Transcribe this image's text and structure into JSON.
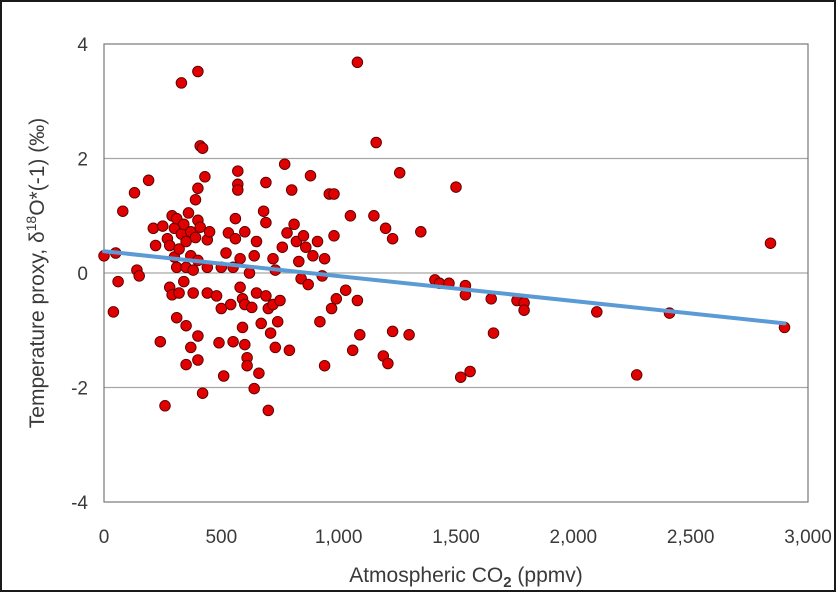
{
  "chart_data": {
    "type": "scatter",
    "title": "",
    "xlabel": {
      "prefix": "Atmospheric CO",
      "subscript": "2",
      "suffix": " (ppmv)"
    },
    "ylabel": {
      "prefix": "Temperature proxy, δ",
      "superscript": "18",
      "suffix": "O*(-1) (‰)"
    },
    "xlim": [
      0,
      3000
    ],
    "ylim": [
      -4,
      4
    ],
    "xticks": [
      0,
      500,
      1000,
      1500,
      2000,
      2500,
      3000
    ],
    "xtick_labels": [
      "0",
      "500",
      "1,000",
      "1,500",
      "2,000",
      "2,500",
      "3,000"
    ],
    "yticks": [
      -4,
      -2,
      0,
      2,
      4
    ],
    "ytick_labels": [
      "-4",
      "-2",
      "0",
      "2",
      "4"
    ],
    "grid": "horizontal",
    "legend": "none",
    "marker_color": "#e00000",
    "marker_edge": "#5a0000",
    "trend_color": "#5b9bd5",
    "series": [
      {
        "points": [
          [
            0,
            0.3
          ],
          [
            40,
            -0.68
          ],
          [
            50,
            0.35
          ],
          [
            60,
            -0.15
          ],
          [
            80,
            1.08
          ],
          [
            130,
            1.4
          ],
          [
            140,
            0.05
          ],
          [
            150,
            -0.05
          ],
          [
            190,
            1.62
          ],
          [
            210,
            0.78
          ],
          [
            220,
            0.48
          ],
          [
            240,
            -1.2
          ],
          [
            250,
            0.82
          ],
          [
            260,
            -2.32
          ],
          [
            270,
            0.6
          ],
          [
            280,
            0.48
          ],
          [
            280,
            -0.25
          ],
          [
            290,
            -0.38
          ],
          [
            290,
            1.0
          ],
          [
            300,
            0.28
          ],
          [
            300,
            0.78
          ],
          [
            310,
            0.1
          ],
          [
            310,
            0.95
          ],
          [
            310,
            -0.78
          ],
          [
            320,
            0.42
          ],
          [
            320,
            -0.35
          ],
          [
            330,
            3.32
          ],
          [
            330,
            0.68
          ],
          [
            340,
            -0.15
          ],
          [
            340,
            0.85
          ],
          [
            350,
            0.55
          ],
          [
            350,
            0.1
          ],
          [
            350,
            -0.92
          ],
          [
            360,
            1.05
          ],
          [
            370,
            0.72
          ],
          [
            370,
            0.3
          ],
          [
            380,
            0.05
          ],
          [
            380,
            -0.35
          ],
          [
            390,
            1.28
          ],
          [
            390,
            0.62
          ],
          [
            400,
            3.52
          ],
          [
            400,
            1.48
          ],
          [
            400,
            0.92
          ],
          [
            400,
            0.22
          ],
          [
            400,
            -1.1
          ],
          [
            400,
            -1.52
          ],
          [
            410,
            2.22
          ],
          [
            410,
            0.8
          ],
          [
            420,
            -2.1
          ],
          [
            420,
            2.18
          ],
          [
            430,
            1.68
          ],
          [
            440,
            0.58
          ],
          [
            440,
            0.1
          ],
          [
            440,
            -0.35
          ],
          [
            450,
            0.72
          ],
          [
            350,
            -1.6
          ],
          [
            370,
            -1.3
          ],
          [
            480,
            -0.4
          ],
          [
            490,
            -1.22
          ],
          [
            500,
            0.1
          ],
          [
            500,
            -0.62
          ],
          [
            510,
            -1.8
          ],
          [
            520,
            0.35
          ],
          [
            530,
            0.7
          ],
          [
            540,
            -0.55
          ],
          [
            550,
            -1.2
          ],
          [
            550,
            0.1
          ],
          [
            560,
            0.95
          ],
          [
            560,
            0.6
          ],
          [
            570,
            1.55
          ],
          [
            570,
            1.78
          ],
          [
            570,
            1.45
          ],
          [
            580,
            0.25
          ],
          [
            580,
            -0.25
          ],
          [
            590,
            -0.45
          ],
          [
            590,
            -0.95
          ],
          [
            600,
            0.72
          ],
          [
            600,
            -0.55
          ],
          [
            600,
            -1.25
          ],
          [
            610,
            -1.48
          ],
          [
            610,
            -1.62
          ],
          [
            620,
            0.0
          ],
          [
            630,
            -0.6
          ],
          [
            640,
            -2.02
          ],
          [
            640,
            0.3
          ],
          [
            650,
            0.55
          ],
          [
            650,
            -0.35
          ],
          [
            660,
            -1.75
          ],
          [
            670,
            -0.88
          ],
          [
            680,
            1.08
          ],
          [
            690,
            0.88
          ],
          [
            690,
            1.58
          ],
          [
            690,
            -0.4
          ],
          [
            700,
            -2.4
          ],
          [
            700,
            -0.62
          ],
          [
            710,
            -1.05
          ],
          [
            720,
            0.25
          ],
          [
            720,
            -0.55
          ],
          [
            730,
            0.05
          ],
          [
            730,
            -1.3
          ],
          [
            740,
            -0.85
          ],
          [
            750,
            -0.48
          ],
          [
            760,
            0.45
          ],
          [
            770,
            1.9
          ],
          [
            780,
            0.7
          ],
          [
            790,
            -1.35
          ],
          [
            800,
            1.45
          ],
          [
            810,
            0.85
          ],
          [
            820,
            0.55
          ],
          [
            830,
            0.2
          ],
          [
            840,
            -0.1
          ],
          [
            850,
            0.65
          ],
          [
            860,
            0.45
          ],
          [
            870,
            -0.2
          ],
          [
            880,
            1.7
          ],
          [
            890,
            0.3
          ],
          [
            910,
            0.55
          ],
          [
            920,
            -0.85
          ],
          [
            930,
            -0.05
          ],
          [
            940,
            -1.62
          ],
          [
            940,
            0.25
          ],
          [
            960,
            1.38
          ],
          [
            970,
            -0.62
          ],
          [
            980,
            1.38
          ],
          [
            980,
            0.65
          ],
          [
            990,
            -0.45
          ],
          [
            1030,
            -0.3
          ],
          [
            1050,
            1.0
          ],
          [
            1060,
            -1.35
          ],
          [
            1080,
            3.68
          ],
          [
            1080,
            -0.48
          ],
          [
            1090,
            -1.08
          ],
          [
            1150,
            1.0
          ],
          [
            1160,
            2.28
          ],
          [
            1190,
            -1.45
          ],
          [
            1200,
            0.78
          ],
          [
            1210,
            -1.58
          ],
          [
            1230,
            0.6
          ],
          [
            1230,
            -1.02
          ],
          [
            1260,
            1.75
          ],
          [
            1300,
            -1.08
          ],
          [
            1350,
            0.72
          ],
          [
            1410,
            -0.12
          ],
          [
            1430,
            -0.18
          ],
          [
            1470,
            -0.18
          ],
          [
            1500,
            1.5
          ],
          [
            1520,
            -1.82
          ],
          [
            1540,
            -0.22
          ],
          [
            1540,
            -0.38
          ],
          [
            1560,
            -1.72
          ],
          [
            1650,
            -0.45
          ],
          [
            1660,
            -1.05
          ],
          [
            1760,
            -0.48
          ],
          [
            1790,
            -0.52
          ],
          [
            1790,
            -0.65
          ],
          [
            2100,
            -0.68
          ],
          [
            2270,
            -1.78
          ],
          [
            2410,
            -0.7
          ],
          [
            2840,
            0.52
          ],
          [
            2900,
            -0.95
          ]
        ]
      }
    ],
    "trendline": {
      "x": [
        0,
        2900
      ],
      "y": [
        0.38,
        -0.88
      ]
    }
  }
}
